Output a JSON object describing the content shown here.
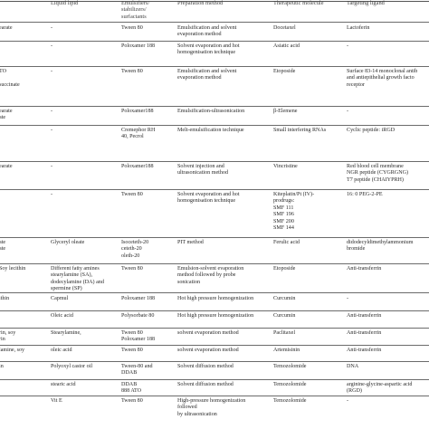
{
  "table": {
    "headers": [
      "Liquid lipid",
      "Emulsifiers/\nstabilizers/\nsurfactants",
      "Preparation method",
      "Therapeutic molecule",
      "Targeting ligand"
    ],
    "rows": [
      {
        "lipid": "earate",
        "liquid": "-",
        "emuls": "Tween 80",
        "method": "Emulsification and solvent\nevaporation method",
        "molecule": "Docetaxel",
        "ligand": "Lactoferin"
      },
      {
        "lipid": "",
        "liquid": "-",
        "emuls": "Poloxamer 188",
        "method": "Solvent evaporation and hot\nhomogenisation technique",
        "molecule": "Asiatic acid",
        "ligand": "-"
      },
      {
        "lipid": "TO\n\nsuccinate",
        "liquid": "-",
        "emuls": "Tween 80",
        "method": "Emulsification and solvent\nevaporation method",
        "molecule": "Etoposide",
        "ligand": "Surface 83-14 monoclonal antib\nand antiepithelial growth facto\nreceptor"
      },
      {
        "lipid": "earate\nate",
        "liquid": "-",
        "emuls": "Poloxamer188",
        "method": "Emulsification-ultrasonication",
        "molecule": "β-Elemene",
        "ligand": "-"
      },
      {
        "lipid": "",
        "liquid": "-",
        "emuls": "Cremephor RH\n40, Pecrol",
        "method": "Melt-emulsification technique",
        "molecule": "Small interfering RNAs",
        "ligand": "Cyclic peptide: iRGD"
      },
      {
        "lipid": "earate",
        "liquid": "-",
        "emuls": "Poloxamer188",
        "method": "Solvent injection and\nultrasonication method",
        "molecule": "Vincristine",
        "ligand": "Red blood cell membrane\nNGR peptide (CYGRGNG)\nT7 peptide (CHAIYPRH)"
      },
      {
        "lipid": "",
        "liquid": "-",
        "emuls": "Tween 80",
        "method": "Solvent evaporation and hot\nhomogenisation technique",
        "molecule": "Kiteplatin/Pt (IV)-\nprodrugs:\nSMF 111\nSMF 196\nSMF 200\nSMF 144",
        "ligand": "16: 0 PEG-2-PE"
      },
      {
        "lipid": "ate\nate",
        "liquid": "Glyceryl oleate",
        "emuls": "Isoceteth-20\nceteth-20\noleth-20",
        "method": "PIT method",
        "molecule": "Ferulic acid",
        "ligand": "didodecyldimethylammonium\nbromide"
      },
      {
        "lipid": "Soy lecithin",
        "liquid": "Different fatty amines\nstearylamine (SA),\ndodecylamine (DA) and\nspermine (SP)",
        "emuls": "Tween 80",
        "method": "Emulsion-solvent evaporation\nmethod followed by probe\nsonication",
        "molecule": "Etoposide",
        "ligand": "Anti-transferrin"
      },
      {
        "lipid": "ithin",
        "liquid": "Capmul",
        "emuls": "Poloxamer 188",
        "method": "Hot high pressure homogenization",
        "molecule": "Curcumin",
        "ligand": "-"
      },
      {
        "lipid": "",
        "liquid": "Oleic acid",
        "emuls": "Polysorbate 80",
        "method": "Hot high pressure homogenization",
        "molecule": "Curcumin",
        "ligand": "Anti-transferrin"
      },
      {
        "lipid": "rin, soy\nrin",
        "liquid": "Stearylamine,",
        "emuls": "Tween 80\nPoloxamer 188",
        "method": "solvent evaporation method",
        "molecule": "Paclitaxel",
        "ligand": "Anti-transferrin"
      },
      {
        "lipid": "lamine, soy",
        "liquid": "oleic acid",
        "emuls": "Tween 80",
        "method": "solvent evaporation method",
        "molecule": "Artemisinin",
        "ligand": "Anti-transferrin"
      },
      {
        "lipid": "in",
        "liquid": "Polyoxyl castor oil",
        "emuls": "Tween-80 and\nDDAB",
        "method": "Solvent diffusion method",
        "molecule": "Temozolomide",
        "ligand": "DNA"
      },
      {
        "lipid": "",
        "liquid": "stearic acid",
        "emuls": "DDAB\n888 ATO",
        "method": "Solvent diffusion method",
        "molecule": "Temozolomide",
        "ligand": "arginine-glycine-aspartic acid\n(RGD)"
      },
      {
        "lipid": "",
        "liquid": "Vit E",
        "emuls": "Tween 80",
        "method": "High-pressure homogenization\nfollowed\nby ultrasonication",
        "molecule": "Temozolomide",
        "ligand": "-"
      }
    ]
  }
}
